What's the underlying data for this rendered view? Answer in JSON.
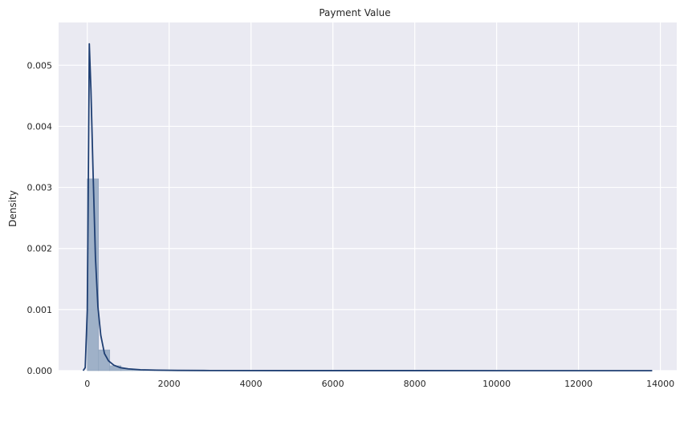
{
  "chart_data": {
    "type": "histogram",
    "title": "Payment Value",
    "xlabel": "",
    "ylabel": "Density",
    "xlim": [
      -700,
      14400
    ],
    "ylim": [
      0,
      0.0057
    ],
    "xticks": [
      0,
      2000,
      4000,
      6000,
      8000,
      10000,
      12000,
      14000
    ],
    "yticks": [
      0.0,
      0.001,
      0.002,
      0.003,
      0.004,
      0.005
    ],
    "xtick_labels": [
      "0",
      "2000",
      "4000",
      "6000",
      "8000",
      "10000",
      "12000",
      "14000"
    ],
    "ytick_labels": [
      "0.000",
      "0.001",
      "0.002",
      "0.003",
      "0.004",
      "0.005"
    ],
    "grid": true,
    "colors": {
      "background": "#eaeaf2",
      "grid": "#ffffff",
      "bar_fill": "#9fb1c8",
      "bar_edge": "#8fa3bd",
      "kde_line": "#1f3f73"
    },
    "histogram": {
      "bin_width": 275,
      "bins": [
        {
          "x0": 0,
          "density": 0.00314
        },
        {
          "x0": 275,
          "density": 0.00034
        },
        {
          "x0": 550,
          "density": 8e-05
        },
        {
          "x0": 825,
          "density": 3e-05
        },
        {
          "x0": 1100,
          "density": 1.5e-05
        },
        {
          "x0": 1375,
          "density": 8e-06
        },
        {
          "x0": 1650,
          "density": 5e-06
        },
        {
          "x0": 1925,
          "density": 3e-06
        },
        {
          "x0": 2200,
          "density": 2e-06
        },
        {
          "x0": 2475,
          "density": 1e-06
        },
        {
          "x0": 2750,
          "density": 1e-06
        }
      ]
    },
    "kde": {
      "x": [
        -100,
        -50,
        0,
        20,
        50,
        90,
        140,
        200,
        260,
        330,
        420,
        520,
        650,
        800,
        1000,
        1300,
        1700,
        2200,
        3000,
        5000,
        8000,
        11000,
        13800
      ],
      "y": [
        0,
        5e-05,
        0.00098,
        0.0026,
        0.00535,
        0.0046,
        0.0033,
        0.00185,
        0.00105,
        0.00058,
        0.00028,
        0.00016,
        9e-05,
        5e-05,
        3e-05,
        1.5e-05,
        8e-06,
        4e-06,
        2e-06,
        1e-06,
        5e-07,
        3e-07,
        2e-07
      ]
    }
  }
}
